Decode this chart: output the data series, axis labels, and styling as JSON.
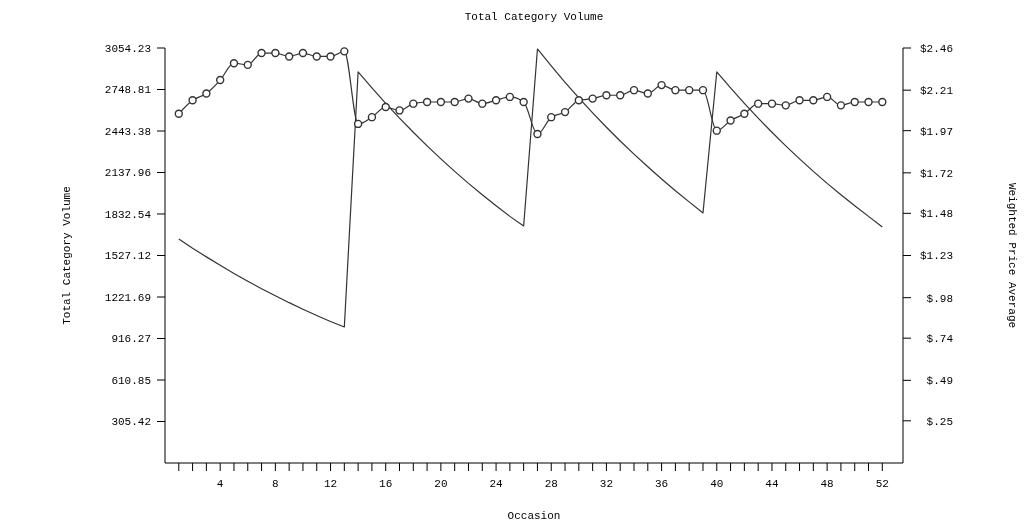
{
  "chart_data": {
    "type": "line",
    "title": "Total Category Volume",
    "xlabel": "Occasion",
    "ylabel": "Total Category Volume",
    "y2label": "Weighted Price Average",
    "x": [
      1,
      2,
      3,
      4,
      5,
      6,
      7,
      8,
      9,
      10,
      11,
      12,
      13,
      14,
      15,
      16,
      17,
      18,
      19,
      20,
      21,
      22,
      23,
      24,
      25,
      26,
      27,
      28,
      29,
      30,
      31,
      32,
      33,
      34,
      35,
      36,
      37,
      38,
      39,
      40,
      41,
      42,
      43,
      44,
      45,
      46,
      47,
      48,
      49,
      50,
      51,
      52
    ],
    "xlim": [
      0,
      53.5
    ],
    "xticks": [
      {
        "value": 1,
        "label": null
      },
      {
        "value": 2,
        "label": null
      },
      {
        "value": 3,
        "label": null
      },
      4,
      {
        "value": 5,
        "label": null
      },
      {
        "value": 6,
        "label": null
      },
      {
        "value": 7,
        "label": null
      },
      8,
      {
        "value": 9,
        "label": null
      },
      {
        "value": 10,
        "label": null
      },
      {
        "value": 11,
        "label": null
      },
      12,
      {
        "value": 13,
        "label": null
      },
      {
        "value": 14,
        "label": null
      },
      {
        "value": 15,
        "label": null
      },
      16,
      {
        "value": 17,
        "label": null
      },
      {
        "value": 18,
        "label": null
      },
      {
        "value": 19,
        "label": null
      },
      20,
      {
        "value": 21,
        "label": null
      },
      {
        "value": 22,
        "label": null
      },
      {
        "value": 23,
        "label": null
      },
      24,
      {
        "value": 25,
        "label": null
      },
      {
        "value": 26,
        "label": null
      },
      {
        "value": 27,
        "label": null
      },
      28,
      {
        "value": 29,
        "label": null
      },
      {
        "value": 30,
        "label": null
      },
      {
        "value": 31,
        "label": null
      },
      32,
      {
        "value": 33,
        "label": null
      },
      {
        "value": 34,
        "label": null
      },
      {
        "value": 35,
        "label": null
      },
      36,
      {
        "value": 37,
        "label": null
      },
      {
        "value": 38,
        "label": null
      },
      {
        "value": 39,
        "label": null
      },
      40,
      {
        "value": 41,
        "label": null
      },
      {
        "value": 42,
        "label": null
      },
      {
        "value": 43,
        "label": null
      },
      44,
      {
        "value": 45,
        "label": null
      },
      {
        "value": 46,
        "label": null
      },
      {
        "value": 47,
        "label": null
      },
      48,
      {
        "value": 49,
        "label": null
      },
      {
        "value": 50,
        "label": null
      },
      {
        "value": 51,
        "label": null
      },
      52
    ],
    "ylim": [
      0,
      3054.23
    ],
    "yticks": [
      305.42,
      610.85,
      916.27,
      1221.69,
      1527.12,
      1832.54,
      2137.96,
      2443.38,
      2748.81,
      3054.23
    ],
    "y2lim": [
      0,
      2.46
    ],
    "y2ticks": [
      {
        "value": 0.25,
        "label": "$.25"
      },
      {
        "value": 0.49,
        "label": "$.49"
      },
      {
        "value": 0.74,
        "label": "$.74"
      },
      {
        "value": 0.98,
        "label": "$.98"
      },
      {
        "value": 1.23,
        "label": "$1.23"
      },
      {
        "value": 1.48,
        "label": "$1.48"
      },
      {
        "value": 1.72,
        "label": "$1.72"
      },
      {
        "value": 1.97,
        "label": "$1.97"
      },
      {
        "value": 2.21,
        "label": "$2.21"
      },
      {
        "value": 2.46,
        "label": "$2.46"
      }
    ],
    "grid": false,
    "line_style": "solid",
    "series": [
      {
        "color": "#333333",
        "marker": "none",
        "values": [
          1649,
          1581,
          1517,
          1455,
          1395,
          1338,
          1283,
          1231,
          1180,
          1132,
          1086,
          1041,
          1001,
          2878,
          2760,
          2647,
          2538,
          2434,
          2334,
          2238,
          2146,
          2058,
          1974,
          1893,
          1815,
          1744,
          3047,
          2922,
          2802,
          2687,
          2577,
          2471,
          2370,
          2273,
          2180,
          2090,
          2004,
          1922,
          1840,
          2878,
          2760,
          2647,
          2538,
          2434,
          2334,
          2238,
          2146,
          2058,
          1974,
          1893,
          1815,
          1737
        ]
      },
      {
        "color": "#333333",
        "marker": "circle",
        "axis": "y2",
        "values": [
          2.07,
          2.15,
          2.19,
          2.27,
          2.37,
          2.36,
          2.43,
          2.43,
          2.41,
          2.43,
          2.41,
          2.41,
          2.44,
          2.01,
          2.05,
          2.11,
          2.09,
          2.13,
          2.14,
          2.14,
          2.14,
          2.16,
          2.13,
          2.15,
          2.17,
          2.14,
          1.95,
          2.05,
          2.08,
          2.15,
          2.16,
          2.18,
          2.18,
          2.21,
          2.19,
          2.24,
          2.21,
          2.21,
          2.21,
          1.97,
          2.03,
          2.07,
          2.13,
          2.13,
          2.12,
          2.15,
          2.15,
          2.17,
          2.12,
          2.14,
          2.14,
          2.14
        ]
      }
    ]
  }
}
